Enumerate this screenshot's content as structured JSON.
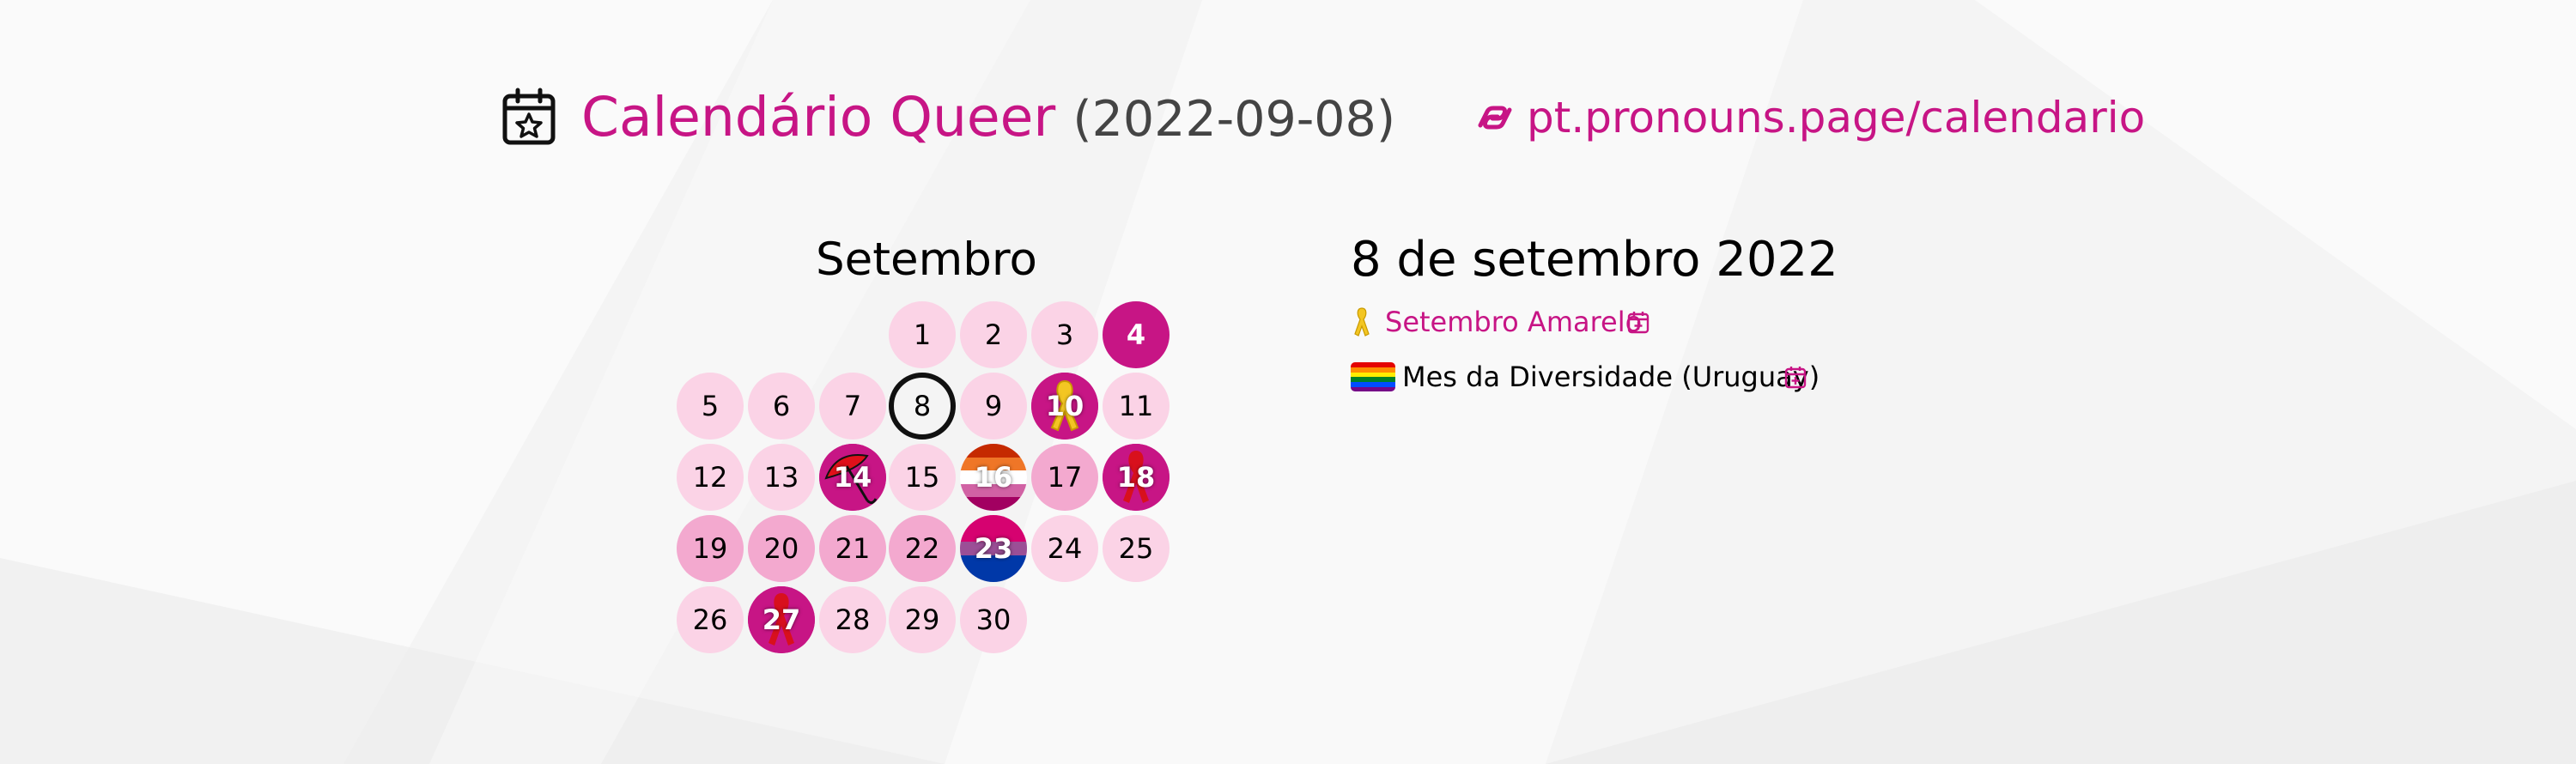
{
  "header": {
    "title": "Calendário Queer",
    "date": "(2022-09-08)",
    "link": "pt.pronouns.page/calendario"
  },
  "calendar": {
    "month": "Setembro",
    "days": [
      "1",
      "2",
      "3",
      "4",
      "5",
      "6",
      "7",
      "8",
      "9",
      "10",
      "11",
      "12",
      "13",
      "14",
      "15",
      "16",
      "17",
      "18",
      "19",
      "20",
      "21",
      "22",
      "23",
      "24",
      "25",
      "26",
      "27",
      "28",
      "29",
      "30"
    ]
  },
  "details": {
    "heading": "8 de setembro 2022",
    "events": [
      {
        "label": "Setembro Amarelo",
        "icon": "yellow-ribbon-icon"
      },
      {
        "label": "Mes da Diversidade (Uruguay)",
        "icon": "rainbow-flag-icon"
      }
    ]
  },
  "colors": {
    "accent": "#c71585",
    "day_light": "#fbd3e6",
    "day_medium": "#f3a9cf",
    "day_strong": "#c71585"
  }
}
